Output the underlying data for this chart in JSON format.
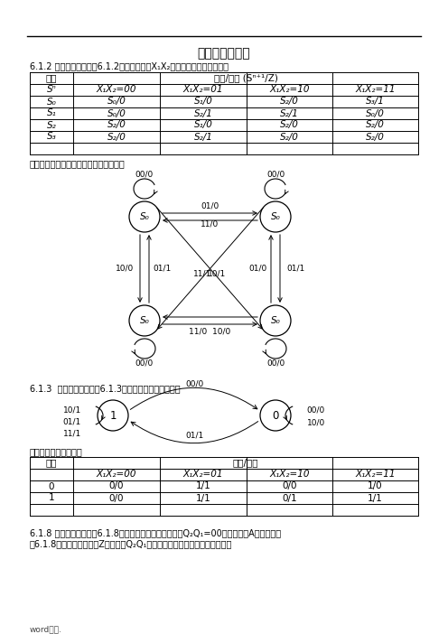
{
  "title": "第六章作业答案",
  "subtitle": "6.1.2 已知状态表如表题6.1.2所示，输入为X₁X₂，试作出相应的状态图。",
  "table1_col0_header": "现态",
  "table1_col1_header": "次态/输出 (Sⁿ⁺¹/Z)",
  "table1_sub_headers": [
    "Sⁿ",
    "X₁X₂=00",
    "X₁X₂=01",
    "X₁X₂=10",
    "X₁X₂=11"
  ],
  "table1_rows": [
    [
      "S₀",
      "S₀/0",
      "S₁/0",
      "S₂/0",
      "S₃/1"
    ],
    [
      "S₁",
      "S₀/0",
      "S₂/1",
      "S₂/1",
      "S₀/0"
    ],
    [
      "S₂",
      "S₂/0",
      "S₁/0",
      "S₂/0",
      "S₂/0"
    ],
    [
      "S₃",
      "S₂/0",
      "S₂/1",
      "S₂/0",
      "S₂/0"
    ]
  ],
  "note1": "解：根据状态表作出对应的状态图如下：",
  "section2": "6.1.3  已知状态图如题图6.1.3所示，试列出其状态表。",
  "table2_col0_header": "现态",
  "table2_col1_header": "次态/输出",
  "table2_sub_headers": [
    "",
    "X₁X₂=00",
    "X₁X₂=01",
    "X₁X₂=10",
    "X₁X₂=11"
  ],
  "table2_rows": [
    [
      "0",
      "0/0",
      "1/1",
      "0/0",
      "1/0"
    ],
    [
      "1",
      "0/0",
      "1/1",
      "0/1",
      "1/1"
    ]
  ],
  "note2": "解：其状态表如下表：",
  "section3_line1": "6.1.8 已知状态表如表题6.1.8所示，若电路的初始状态为Q₂Q₁=00，输入信号A的波形如图",
  "section3_line2": "题6.1.8所示，输出信号为Z，试画出Q₂Q₁的波形（设触发器对下降沿敏感）。",
  "footer": "word版本.",
  "bg_color": "#ffffff",
  "text_color": "#000000"
}
